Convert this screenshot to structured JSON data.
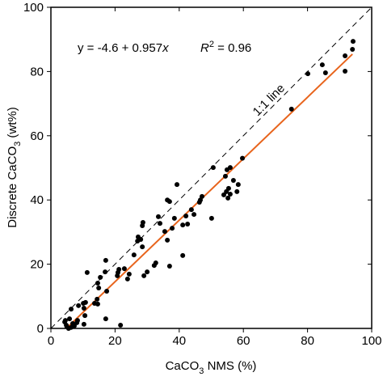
{
  "chart_data": {
    "type": "scatter",
    "x_label": [
      "CaCO",
      "3",
      " NMS (%)"
    ],
    "y_label": [
      "Discrete CaCO",
      "3",
      " (wt%)"
    ],
    "equation": [
      "y = -4.6 + 0.957",
      "x"
    ],
    "r_squared": [
      "R",
      "2",
      " = 0.96"
    ],
    "one_to_one_label": "1:1 line",
    "xlim": [
      0,
      100
    ],
    "ylim": [
      0,
      100
    ],
    "xticks": [
      0,
      20,
      40,
      60,
      80,
      100
    ],
    "yticks": [
      0,
      20,
      40,
      60,
      80,
      100
    ],
    "point_color": "#000000",
    "x": [
      94.2,
      94.0,
      91.7,
      91.7,
      84.6,
      85.6,
      80.1,
      75.0,
      59.7,
      55.9,
      54.9,
      50.6,
      56.9,
      54.4,
      55.4,
      55.9,
      53.9,
      54.7,
      55.2,
      58.0,
      58.4,
      50.1,
      47.1,
      46.6,
      46.3,
      43.8,
      44.6,
      42.1,
      42.6,
      41.1,
      38.5,
      37.8,
      39.3,
      36.3,
      37.0,
      35.5,
      36.3,
      34.0,
      33.5,
      28.5,
      28.7,
      28.0,
      27.2,
      27.0,
      28.5,
      25.9,
      32.7,
      32.2,
      37.0,
      41.1,
      30.0,
      29.0,
      24.4,
      23.9,
      22.9,
      20.9,
      21.2,
      20.7,
      17.1,
      16.9,
      15.4,
      14.6,
      14.9,
      11.3,
      14.4,
      14.6,
      13.6,
      17.4,
      17.1,
      21.7,
      10.8,
      10.1,
      10.3,
      10.6,
      10.3,
      8.6,
      6.3,
      8.3,
      8.1,
      7.3,
      6.3,
      5.0,
      4.8,
      4.5,
      4.3,
      5.8,
      6.8,
      5.5
    ],
    "y": [
      89.4,
      86.9,
      84.9,
      80.1,
      82.1,
      79.6,
      79.3,
      68.3,
      53.0,
      50.1,
      49.4,
      50.1,
      46.1,
      47.4,
      43.6,
      41.8,
      41.6,
      42.6,
      40.6,
      42.6,
      44.8,
      34.3,
      41.1,
      40.0,
      39.3,
      37.0,
      35.5,
      35.0,
      32.5,
      32.2,
      34.3,
      31.2,
      44.8,
      40.0,
      39.5,
      30.2,
      27.5,
      32.7,
      34.8,
      32.0,
      33.0,
      27.7,
      28.5,
      27.2,
      25.4,
      22.9,
      20.4,
      19.6,
      19.4,
      22.7,
      17.6,
      16.4,
      16.9,
      15.4,
      18.6,
      17.4,
      18.4,
      16.4,
      21.2,
      17.6,
      15.9,
      14.1,
      12.6,
      17.4,
      9.1,
      7.6,
      7.8,
      11.6,
      3.0,
      1.0,
      8.1,
      7.8,
      6.3,
      4.0,
      1.3,
      7.1,
      6.0,
      2.5,
      1.8,
      0.8,
      0.3,
      0.5,
      1.0,
      2.5,
      2.0,
      3.0,
      1.5,
      0.0
    ],
    "fit_line": {
      "color": "#e8641c",
      "x": [
        4.8,
        94.0
      ],
      "y": [
        0,
        85.4
      ]
    },
    "one_to_one": {
      "color": "#000000",
      "x": [
        0,
        100
      ],
      "y": [
        0,
        100
      ]
    }
  }
}
